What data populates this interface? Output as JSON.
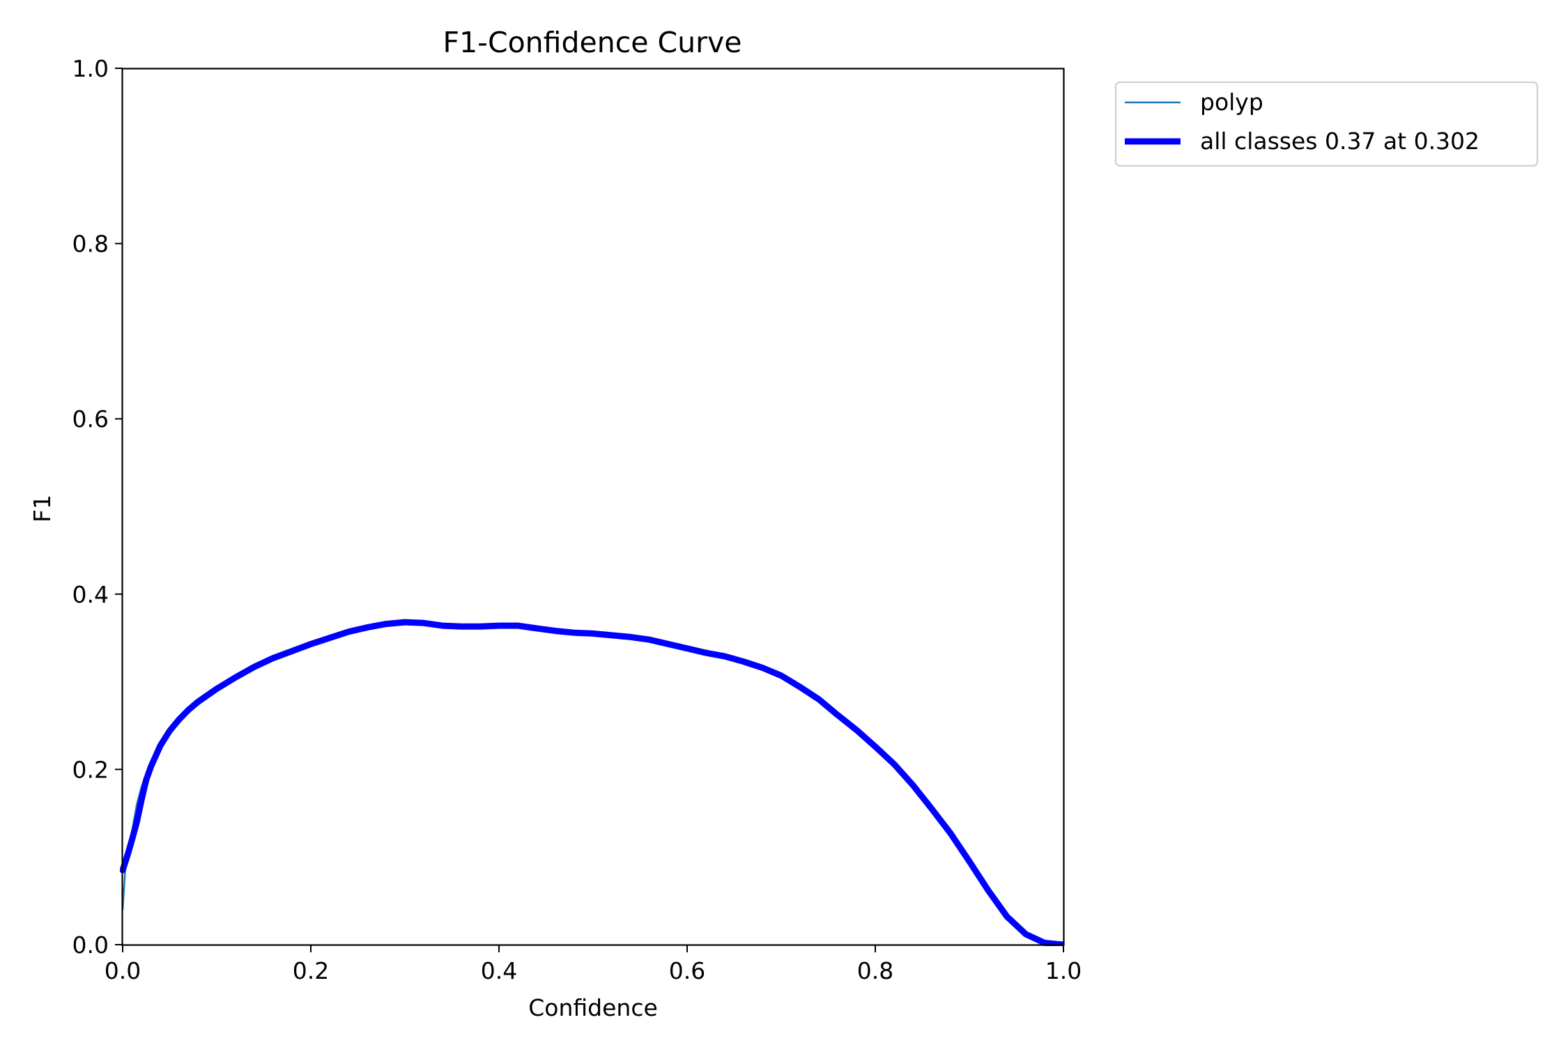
{
  "chart_data": {
    "type": "line",
    "title": "F1-Confidence Curve",
    "xlabel": "Confidence",
    "ylabel": "F1",
    "xlim": [
      0.0,
      1.0
    ],
    "ylim": [
      0.0,
      1.0
    ],
    "xticks": [
      "0.0",
      "0.2",
      "0.4",
      "0.6",
      "0.8",
      "1.0"
    ],
    "yticks": [
      "0.0",
      "0.2",
      "0.4",
      "0.6",
      "0.8",
      "1.0"
    ],
    "grid": false,
    "legend_position": "outside upper-right",
    "series": [
      {
        "name": "polyp",
        "color": "#1f77b4",
        "x": [
          0.0,
          0.003,
          0.006,
          0.01,
          0.015,
          0.02,
          0.025,
          0.03,
          0.04,
          0.05,
          0.06,
          0.07,
          0.08,
          0.1,
          0.12,
          0.14,
          0.16,
          0.18,
          0.2,
          0.22,
          0.24,
          0.26,
          0.28,
          0.3,
          0.32,
          0.34,
          0.36,
          0.38,
          0.4,
          0.42,
          0.44,
          0.46,
          0.48,
          0.5,
          0.52,
          0.54,
          0.56,
          0.58,
          0.6,
          0.62,
          0.64,
          0.66,
          0.68,
          0.7,
          0.72,
          0.74,
          0.76,
          0.78,
          0.8,
          0.82,
          0.84,
          0.86,
          0.88,
          0.9,
          0.92,
          0.94,
          0.96,
          0.98,
          1.0
        ],
        "y": [
          0.04,
          0.09,
          0.11,
          0.13,
          0.16,
          0.18,
          0.195,
          0.205,
          0.228,
          0.245,
          0.258,
          0.268,
          0.277,
          0.292,
          0.305,
          0.317,
          0.327,
          0.335,
          0.343,
          0.35,
          0.357,
          0.362,
          0.366,
          0.368,
          0.367,
          0.364,
          0.363,
          0.363,
          0.364,
          0.364,
          0.361,
          0.358,
          0.356,
          0.355,
          0.353,
          0.351,
          0.348,
          0.343,
          0.338,
          0.333,
          0.329,
          0.323,
          0.316,
          0.307,
          0.294,
          0.28,
          0.262,
          0.245,
          0.226,
          0.206,
          0.182,
          0.155,
          0.127,
          0.095,
          0.062,
          0.032,
          0.012,
          0.002,
          0.0
        ]
      },
      {
        "name": "all classes 0.37 at 0.302",
        "color": "#0000ff",
        "x": [
          0.0,
          0.003,
          0.006,
          0.01,
          0.015,
          0.02,
          0.025,
          0.03,
          0.04,
          0.05,
          0.06,
          0.07,
          0.08,
          0.1,
          0.12,
          0.14,
          0.16,
          0.18,
          0.2,
          0.22,
          0.24,
          0.26,
          0.28,
          0.3,
          0.32,
          0.34,
          0.36,
          0.38,
          0.4,
          0.42,
          0.44,
          0.46,
          0.48,
          0.5,
          0.52,
          0.54,
          0.56,
          0.58,
          0.6,
          0.62,
          0.64,
          0.66,
          0.68,
          0.7,
          0.72,
          0.74,
          0.76,
          0.78,
          0.8,
          0.82,
          0.84,
          0.86,
          0.88,
          0.9,
          0.92,
          0.94,
          0.96,
          0.98,
          1.0
        ],
        "y": [
          0.085,
          0.095,
          0.105,
          0.12,
          0.14,
          0.165,
          0.188,
          0.203,
          0.227,
          0.244,
          0.257,
          0.268,
          0.277,
          0.292,
          0.305,
          0.317,
          0.327,
          0.335,
          0.343,
          0.35,
          0.357,
          0.362,
          0.366,
          0.368,
          0.367,
          0.364,
          0.363,
          0.363,
          0.364,
          0.364,
          0.361,
          0.358,
          0.356,
          0.355,
          0.353,
          0.351,
          0.348,
          0.343,
          0.338,
          0.333,
          0.329,
          0.323,
          0.316,
          0.307,
          0.294,
          0.28,
          0.262,
          0.245,
          0.226,
          0.206,
          0.182,
          0.155,
          0.127,
          0.095,
          0.062,
          0.032,
          0.012,
          0.002,
          0.0
        ]
      }
    ]
  }
}
